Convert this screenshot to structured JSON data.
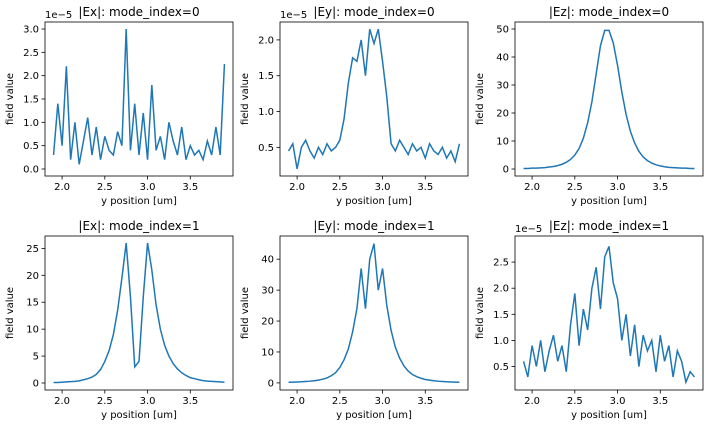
{
  "chart_data": [
    {
      "type": "line",
      "title": "|Ex|: mode_index=0",
      "offset_text": "1e−5",
      "xlabel": "y position [um]",
      "ylabel": "field value",
      "color": "#1f77b4",
      "x": [
        1.9,
        1.95,
        2.0,
        2.05,
        2.1,
        2.15,
        2.2,
        2.25,
        2.3,
        2.35,
        2.4,
        2.45,
        2.5,
        2.55,
        2.6,
        2.65,
        2.7,
        2.75,
        2.8,
        2.85,
        2.9,
        2.95,
        3.0,
        3.05,
        3.1,
        3.15,
        3.2,
        3.25,
        3.3,
        3.35,
        3.4,
        3.45,
        3.5,
        3.55,
        3.6,
        3.65,
        3.7,
        3.75,
        3.8,
        3.85,
        3.9
      ],
      "values": [
        0.3,
        1.4,
        0.5,
        2.2,
        0.2,
        1.0,
        0.1,
        0.6,
        1.1,
        0.3,
        0.9,
        0.2,
        0.7,
        0.4,
        0.3,
        0.8,
        0.5,
        3.0,
        0.4,
        1.4,
        0.3,
        1.2,
        0.2,
        1.8,
        0.4,
        0.7,
        0.2,
        1.0,
        0.6,
        0.3,
        0.9,
        0.2,
        0.5,
        0.3,
        0.4,
        0.2,
        0.6,
        0.3,
        0.9,
        0.3,
        2.25
      ],
      "xlim": [
        1.8,
        4.0
      ],
      "xticks": [
        {
          "value": 2.0,
          "label": "2.0"
        },
        2.5,
        {
          "value": 3.0,
          "label": "3.0"
        },
        3.5
      ],
      "ylim": [
        -0.15,
        3.15
      ],
      "yticks": [
        {
          "value": 0,
          "label": "0.0"
        },
        0.5,
        {
          "value": 1.0,
          "label": "1.0"
        },
        1.5,
        {
          "value": 2.0,
          "label": "2.0"
        },
        2.5,
        {
          "value": 3.0,
          "label": "3.0"
        }
      ]
    },
    {
      "type": "line",
      "title": "|Ey|: mode_index=0",
      "offset_text": "1e−5",
      "xlabel": "y position [um]",
      "ylabel": "field value",
      "color": "#1f77b4",
      "x": [
        1.9,
        1.95,
        2.0,
        2.05,
        2.1,
        2.15,
        2.2,
        2.25,
        2.3,
        2.35,
        2.4,
        2.45,
        2.5,
        2.55,
        2.6,
        2.65,
        2.7,
        2.75,
        2.8,
        2.85,
        2.9,
        2.95,
        3.0,
        3.05,
        3.1,
        3.15,
        3.2,
        3.25,
        3.3,
        3.35,
        3.4,
        3.45,
        3.5,
        3.55,
        3.6,
        3.65,
        3.7,
        3.75,
        3.8,
        3.85,
        3.9
      ],
      "values": [
        0.45,
        0.55,
        0.2,
        0.5,
        0.6,
        0.45,
        0.35,
        0.5,
        0.4,
        0.55,
        0.45,
        0.5,
        0.6,
        0.9,
        1.4,
        1.75,
        1.7,
        2.0,
        1.5,
        2.15,
        1.95,
        2.15,
        1.7,
        1.2,
        0.55,
        0.45,
        0.6,
        0.5,
        0.4,
        0.55,
        0.45,
        0.5,
        0.35,
        0.55,
        0.45,
        0.4,
        0.5,
        0.35,
        0.45,
        0.3,
        0.55
      ],
      "xlim": [
        1.8,
        4.0
      ],
      "xticks": [
        {
          "value": 2.0,
          "label": "2.0"
        },
        2.5,
        {
          "value": 3.0,
          "label": "3.0"
        },
        3.5
      ],
      "ylim": [
        0.1,
        2.25
      ],
      "yticks": [
        0.5,
        {
          "value": 1.0,
          "label": "1.0"
        },
        1.5,
        {
          "value": 2.0,
          "label": "2.0"
        }
      ]
    },
    {
      "type": "line",
      "title": "|Ez|: mode_index=0",
      "xlabel": "y position [um]",
      "ylabel": "field value",
      "color": "#1f77b4",
      "x": [
        1.9,
        1.95,
        2.0,
        2.05,
        2.1,
        2.15,
        2.2,
        2.25,
        2.3,
        2.35,
        2.4,
        2.45,
        2.5,
        2.55,
        2.6,
        2.65,
        2.7,
        2.75,
        2.8,
        2.85,
        2.9,
        2.95,
        3.0,
        3.05,
        3.1,
        3.15,
        3.2,
        3.25,
        3.3,
        3.35,
        3.4,
        3.45,
        3.5,
        3.55,
        3.6,
        3.65,
        3.7,
        3.75,
        3.8,
        3.85,
        3.9
      ],
      "values": [
        0.2,
        0.2,
        0.3,
        0.3,
        0.4,
        0.5,
        0.7,
        0.9,
        1.2,
        1.7,
        2.4,
        3.4,
        5,
        7.3,
        11,
        16.5,
        24,
        34,
        44,
        49.5,
        49.5,
        45,
        37,
        27.5,
        19.5,
        13.5,
        9.3,
        6.3,
        4.3,
        3,
        2.1,
        1.5,
        1.1,
        0.8,
        0.6,
        0.5,
        0.4,
        0.3,
        0.3,
        0.2,
        0.2
      ],
      "xlim": [
        1.8,
        4.0
      ],
      "xticks": [
        {
          "value": 2.0,
          "label": "2.0"
        },
        2.5,
        {
          "value": 3.0,
          "label": "3.0"
        },
        3.5
      ],
      "ylim": [
        -2.5,
        52.5
      ],
      "yticks": [
        0,
        10,
        20,
        30,
        40,
        50
      ]
    },
    {
      "type": "line",
      "title": "|Ex|: mode_index=1",
      "xlabel": "y position [um]",
      "ylabel": "field value",
      "color": "#1f77b4",
      "x": [
        1.9,
        1.95,
        2.0,
        2.05,
        2.1,
        2.15,
        2.2,
        2.25,
        2.3,
        2.35,
        2.4,
        2.45,
        2.5,
        2.55,
        2.6,
        2.65,
        2.7,
        2.75,
        2.8,
        2.85,
        2.9,
        2.95,
        3.0,
        3.05,
        3.1,
        3.15,
        3.2,
        3.25,
        3.3,
        3.35,
        3.4,
        3.45,
        3.5,
        3.55,
        3.6,
        3.65,
        3.7,
        3.75,
        3.8,
        3.85,
        3.9
      ],
      "values": [
        0.1,
        0.1,
        0.15,
        0.2,
        0.25,
        0.3,
        0.4,
        0.6,
        0.8,
        1.1,
        1.6,
        2.5,
        4,
        6,
        9,
        13.5,
        19.5,
        26,
        16,
        3,
        4,
        16,
        26,
        21,
        14.5,
        10,
        7,
        5,
        3.6,
        2.6,
        1.9,
        1.4,
        1,
        0.8,
        0.6,
        0.45,
        0.35,
        0.3,
        0.25,
        0.2,
        0.15
      ],
      "xlim": [
        1.8,
        4.0
      ],
      "xticks": [
        {
          "value": 2.0,
          "label": "2.0"
        },
        2.5,
        {
          "value": 3.0,
          "label": "3.0"
        },
        3.5
      ],
      "ylim": [
        -1.3,
        27.3
      ],
      "yticks": [
        0,
        5,
        10,
        15,
        20,
        25
      ]
    },
    {
      "type": "line",
      "title": "|Ey|: mode_index=1",
      "xlabel": "y position [um]",
      "ylabel": "field value",
      "color": "#1f77b4",
      "x": [
        1.9,
        1.95,
        2.0,
        2.05,
        2.1,
        2.15,
        2.2,
        2.25,
        2.3,
        2.35,
        2.4,
        2.45,
        2.5,
        2.55,
        2.6,
        2.65,
        2.7,
        2.75,
        2.8,
        2.85,
        2.9,
        2.95,
        3.0,
        3.05,
        3.1,
        3.15,
        3.2,
        3.25,
        3.3,
        3.35,
        3.4,
        3.45,
        3.5,
        3.55,
        3.6,
        3.65,
        3.7,
        3.75,
        3.8,
        3.85,
        3.9
      ],
      "values": [
        0.2,
        0.25,
        0.3,
        0.35,
        0.45,
        0.55,
        0.7,
        0.9,
        1.2,
        1.6,
        2.3,
        3.3,
        5,
        7.5,
        11,
        16.5,
        24,
        37,
        24,
        40,
        45,
        30,
        37,
        25,
        17,
        11.5,
        8,
        5.5,
        3.8,
        2.7,
        2,
        1.5,
        1.1,
        0.9,
        0.7,
        0.55,
        0.45,
        0.35,
        0.3,
        0.25,
        0.2
      ],
      "xlim": [
        1.8,
        4.0
      ],
      "xticks": [
        {
          "value": 2.0,
          "label": "2.0"
        },
        2.5,
        {
          "value": 3.0,
          "label": "3.0"
        },
        3.5
      ],
      "ylim": [
        -2.3,
        47.5
      ],
      "yticks": [
        0,
        10,
        20,
        30,
        40
      ]
    },
    {
      "type": "line",
      "title": "|Ez|: mode_index=1",
      "offset_text": "1e−5",
      "xlabel": "y position [um]",
      "ylabel": "field value",
      "color": "#1f77b4",
      "x": [
        1.9,
        1.95,
        2.0,
        2.05,
        2.1,
        2.15,
        2.2,
        2.25,
        2.3,
        2.35,
        2.4,
        2.45,
        2.5,
        2.55,
        2.6,
        2.65,
        2.7,
        2.75,
        2.8,
        2.85,
        2.9,
        2.95,
        3.0,
        3.05,
        3.1,
        3.15,
        3.2,
        3.25,
        3.3,
        3.35,
        3.4,
        3.45,
        3.5,
        3.55,
        3.6,
        3.65,
        3.7,
        3.75,
        3.8,
        3.85,
        3.9
      ],
      "values": [
        0.6,
        0.3,
        0.9,
        0.5,
        1.0,
        0.4,
        0.8,
        1.1,
        0.6,
        0.9,
        0.4,
        1.3,
        1.9,
        0.9,
        1.6,
        1.2,
        2.0,
        2.4,
        1.6,
        2.6,
        2.8,
        2.1,
        1.8,
        1.0,
        1.5,
        0.7,
        1.3,
        0.5,
        1.1,
        0.8,
        1.0,
        0.4,
        1.1,
        0.6,
        0.9,
        0.3,
        0.8,
        0.6,
        0.2,
        0.4,
        0.3
      ],
      "xlim": [
        1.8,
        4.0
      ],
      "xticks": [
        {
          "value": 2.0,
          "label": "2.0"
        },
        2.5,
        {
          "value": 3.0,
          "label": "3.0"
        },
        3.5
      ],
      "ylim": [
        0.05,
        3.0
      ],
      "yticks": [
        0.5,
        {
          "value": 1.0,
          "label": "1.0"
        },
        1.5,
        {
          "value": 2.0,
          "label": "2.0"
        },
        2.5
      ]
    }
  ]
}
